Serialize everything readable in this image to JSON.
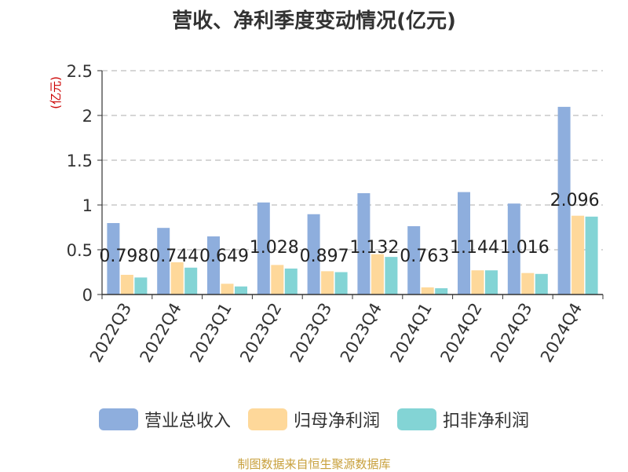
{
  "title": "营收、净利季度变动情况(亿元)",
  "footer": "制图数据来自恒生聚源数据库",
  "colors": {
    "revenue": "#8eaedd",
    "parent_net": "#fed89a",
    "deducted_net": "#83d4d5",
    "unit_label": "#cc0000",
    "grid": "#c8c8c8",
    "axis": "#333333"
  },
  "chart_data": {
    "type": "bar",
    "title": "营收、净利季度变动情况(亿元)",
    "ylabel": "(亿元)",
    "xlabel": "",
    "ylim": [
      0,
      2.5
    ],
    "yticks": [
      {
        "value": 0,
        "label": "0"
      },
      {
        "value": 0.5,
        "label": "0.5"
      },
      {
        "value": 1,
        "label": "1"
      },
      {
        "value": 1.5,
        "label": "1.5"
      },
      {
        "value": 2,
        "label": "2"
      },
      {
        "value": 2.5,
        "label": "2.5"
      }
    ],
    "grid": true,
    "legend_position": "bottom",
    "categories": [
      "2022Q3",
      "2022Q4",
      "2023Q1",
      "2023Q2",
      "2023Q3",
      "2023Q4",
      "2024Q1",
      "2024Q2",
      "2024Q3",
      "2024Q4"
    ],
    "series": [
      {
        "name": "营业总收入",
        "color": "#8eaedd",
        "values": [
          0.798,
          0.744,
          0.649,
          1.028,
          0.897,
          1.132,
          0.763,
          1.144,
          1.016,
          2.096
        ],
        "labels": [
          "0.798",
          "0.744",
          "0.649",
          "1.028",
          "0.897",
          "1.132",
          "0.763",
          "1.144",
          "1.016",
          "2.096"
        ]
      },
      {
        "name": "归母净利润",
        "color": "#fed89a",
        "values": [
          0.22,
          0.36,
          0.12,
          0.33,
          0.26,
          0.45,
          0.08,
          0.27,
          0.24,
          0.88
        ]
      },
      {
        "name": "扣非净利润",
        "color": "#83d4d5",
        "values": [
          0.19,
          0.3,
          0.09,
          0.29,
          0.25,
          0.42,
          0.07,
          0.27,
          0.23,
          0.87
        ]
      }
    ]
  }
}
